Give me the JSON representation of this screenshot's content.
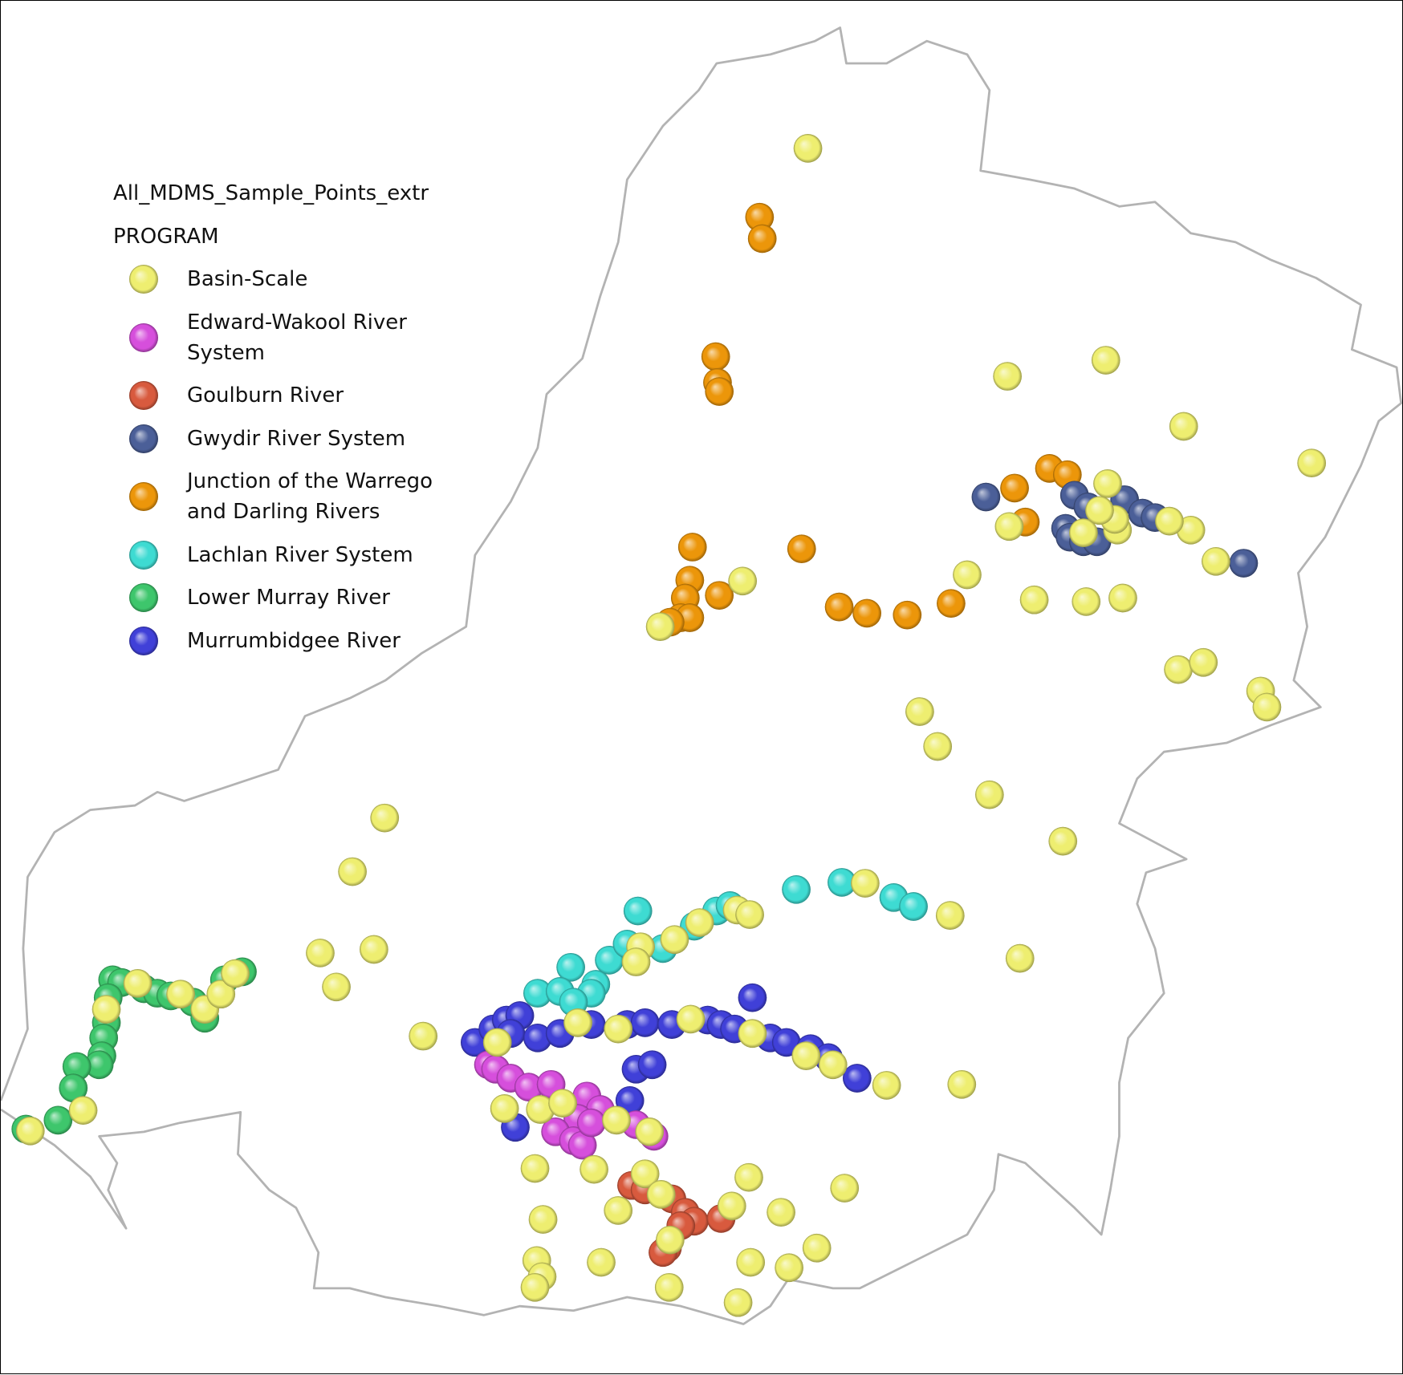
{
  "legend": {
    "layer": "All_MDMS_Sample_Points_extr",
    "field": "PROGRAM",
    "items": [
      {
        "label": "Basin-Scale",
        "color": "#eeee70"
      },
      {
        "label": "Edward-Wakool River System",
        "color": "#d64fdc"
      },
      {
        "label": "Goulburn River",
        "color": "#d85a3e"
      },
      {
        "label": "Gwydir River System",
        "color": "#4b5f98"
      },
      {
        "label": "Junction of the Warrego and Darling Rivers",
        "color": "#ec960a"
      },
      {
        "label": "Lachlan River System",
        "color": "#3edbd2"
      },
      {
        "label": "Lower Murray River",
        "color": "#3ec66c"
      },
      {
        "label": "Murrumbidgee River",
        "color": "#4040d8"
      }
    ]
  }
}
